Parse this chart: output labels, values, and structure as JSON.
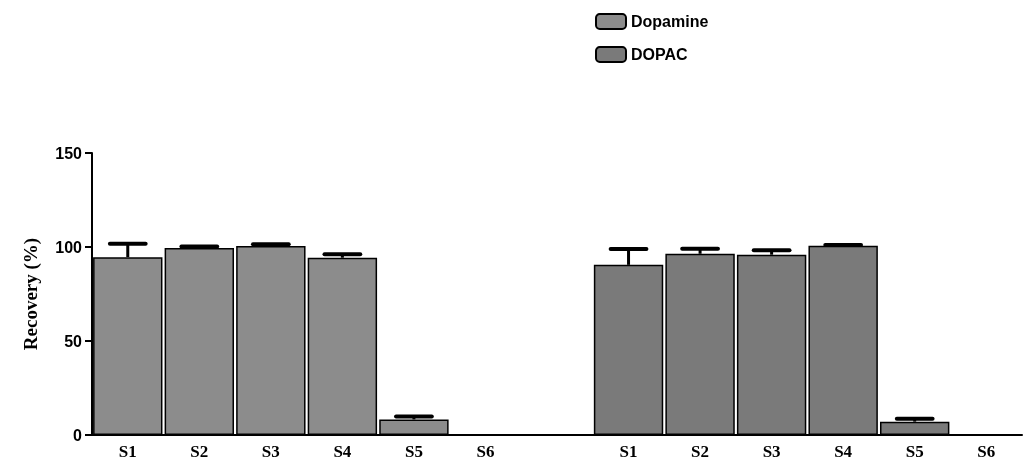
{
  "chart_data": {
    "type": "bar",
    "ylabel": "Recovery (%)",
    "categories": [
      "S1",
      "S2",
      "S3",
      "S4",
      "S5",
      "S6",
      null,
      "S1",
      "S2",
      "S3",
      "S4",
      "S5",
      "S6"
    ],
    "series": [
      {
        "name": "Dopamine",
        "color": "#8c8c8c",
        "values": [
          94.6,
          99.5,
          100.5,
          94.3,
          8.3,
          null,
          null,
          null,
          null,
          null,
          null,
          null,
          null
        ],
        "errors": [
          [
            94.6,
            101.7
          ],
          [
            99.5,
            100.2
          ],
          [
            100.5,
            101.5
          ],
          [
            94.3,
            96.2
          ],
          [
            8.3,
            9.8
          ],
          null,
          null,
          null,
          null,
          null,
          null,
          null,
          null
        ]
      },
      {
        "name": "DOPAC",
        "color": "#7a7a7a",
        "values": [
          null,
          null,
          null,
          null,
          null,
          null,
          null,
          90.5,
          96.4,
          95.9,
          100.7,
          7.1,
          null
        ],
        "errors": [
          null,
          null,
          null,
          null,
          null,
          null,
          null,
          [
            90.5,
            98.9
          ],
          [
            96.4,
            99.1
          ],
          [
            95.9,
            98.3
          ],
          [
            100.7,
            101
          ],
          [
            7.1,
            8.7
          ],
          null
        ]
      }
    ],
    "ylim": [
      0,
      150
    ],
    "yticks": [
      0,
      50,
      100,
      150
    ],
    "grid": false,
    "legend": "top right"
  }
}
